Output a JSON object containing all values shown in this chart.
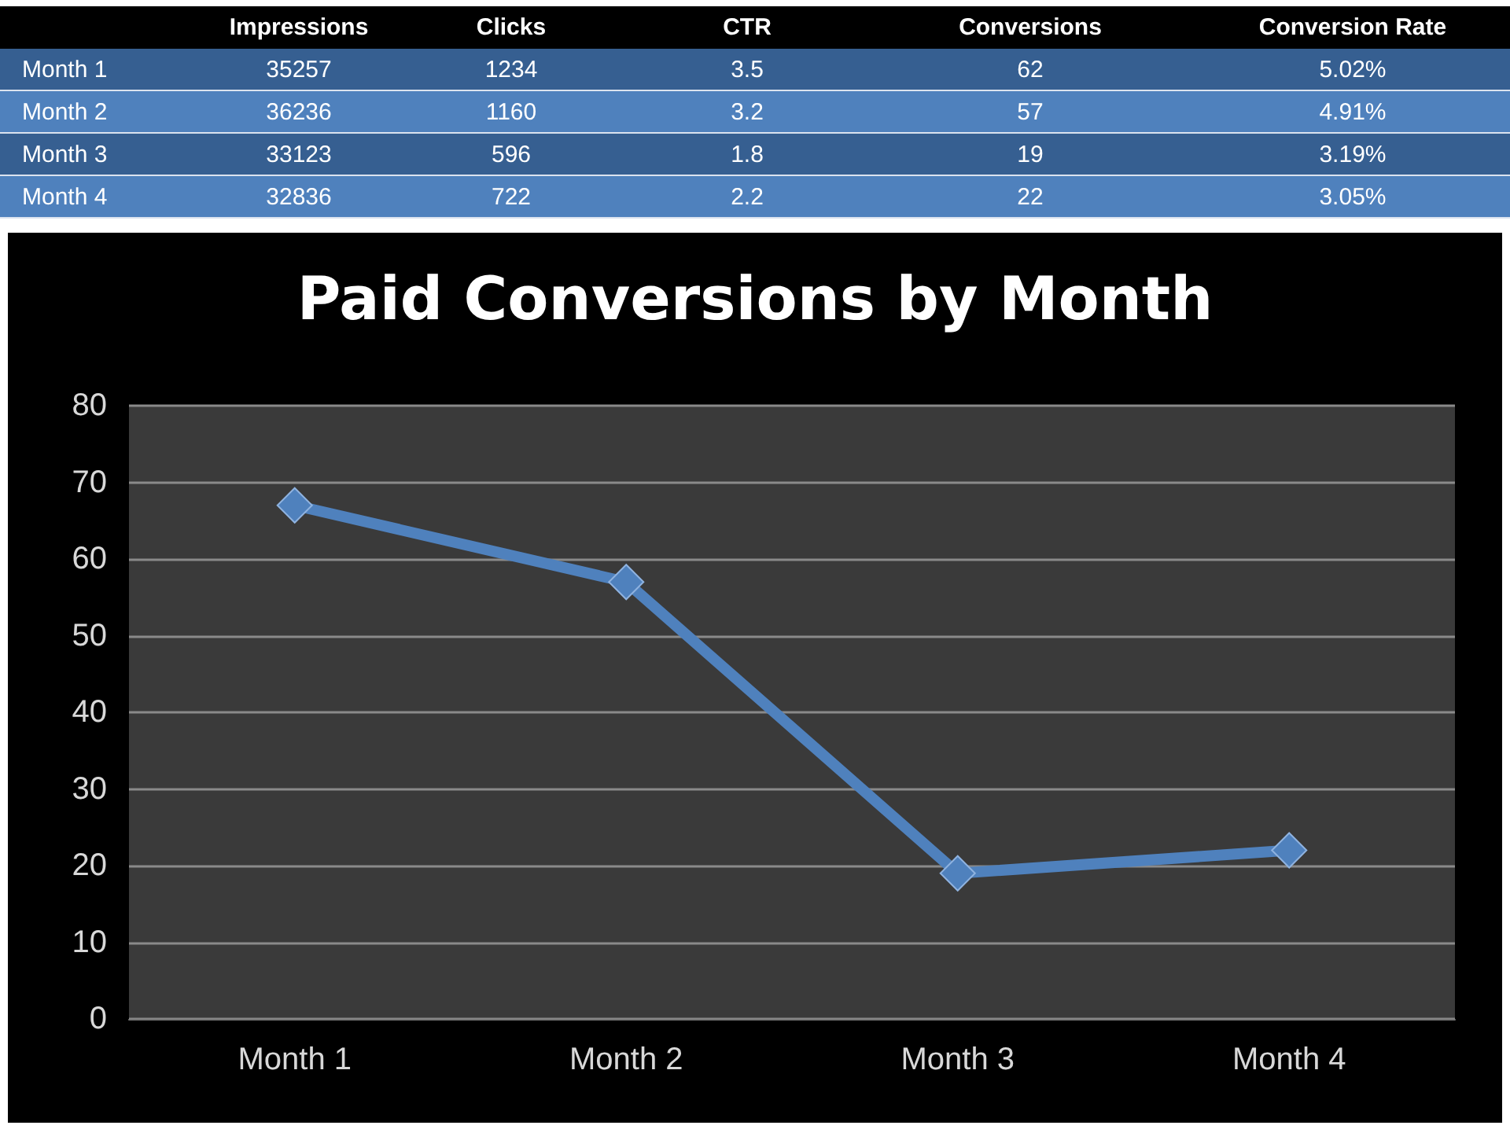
{
  "chart_data": [
    {
      "type": "other",
      "categories": [
        "Month 1",
        "Month 2",
        "Month 3",
        "Month 4"
      ],
      "series": [
        {
          "name": "Impressions",
          "colors": [
            "#365f91",
            "#4f81bd",
            "#365f91",
            "#4f81bd"
          ],
          "values": [
            35257,
            36236,
            33123,
            32836
          ]
        },
        {
          "name": "Clicks",
          "colors": [
            "#365f91",
            "#4f81bd",
            "#365f91",
            "#4f81bd"
          ],
          "values": [
            1234,
            1160,
            596,
            722
          ]
        },
        {
          "name": "CTR",
          "colors": [
            "#365f91",
            "#4f81bd",
            "#365f91",
            "#4f81bd"
          ],
          "values": [
            3.5,
            3.2,
            1.8,
            2.2
          ]
        },
        {
          "name": "Conversions",
          "colors": [
            "#365f91",
            "#4f81bd",
            "#365f91",
            "#4f81bd"
          ],
          "values": [
            62,
            57,
            19,
            22
          ]
        },
        {
          "name": "Conversion Rate",
          "colors": [
            "#365f91",
            "#4f81bd",
            "#365f91",
            "#4f81bd"
          ],
          "values": [
            5.02,
            4.91,
            3.19,
            3.05
          ],
          "value_labels": [
            "5.02%",
            "4.91%",
            "3.19%",
            "3.05%"
          ]
        }
      ],
      "data_labels": true
    },
    {
      "type": "line",
      "title": "Paid Conversions by Month",
      "categories": [
        "Month 1",
        "Month 2",
        "Month 3",
        "Month 4"
      ],
      "series": [
        {
          "color": "#4f81bd",
          "values": [
            67,
            57,
            19,
            22
          ]
        }
      ],
      "ylim": [
        0,
        80
      ],
      "yticks": [
        0,
        10,
        20,
        30,
        40,
        50,
        60,
        70,
        80
      ],
      "grid": "y",
      "marker": "diamond"
    }
  ]
}
